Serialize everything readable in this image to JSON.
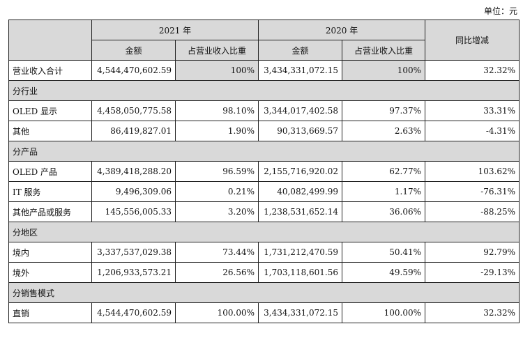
{
  "unit_label": "单位：元",
  "header": {
    "year_2021": "2021 年",
    "year_2020": "2020 年",
    "amount": "金额",
    "ratio": "占营业收入比重",
    "yoy": "同比增减"
  },
  "rows": [
    {
      "label": "营业收入合计",
      "a21": "4,544,470,602.59",
      "r21": "100%",
      "a20": "3,434,331,072.15",
      "r20": "100%",
      "yoy": "32.32%"
    },
    {
      "label": "OLED 显示",
      "a21": "4,458,050,775.58",
      "r21": "98.10%",
      "a20": "3,344,017,402.58",
      "r20": "97.37%",
      "yoy": "33.31%"
    },
    {
      "label": "其他",
      "a21": "86,419,827.01",
      "r21": "1.90%",
      "a20": "90,313,669.57",
      "r20": "2.63%",
      "yoy": "-4.31%"
    },
    {
      "label": "OLED 产品",
      "a21": "4,389,418,288.20",
      "r21": "96.59%",
      "a20": "2,155,716,920.02",
      "r20": "62.77%",
      "yoy": "103.62%"
    },
    {
      "label": "IT 服务",
      "a21": "9,496,309.06",
      "r21": "0.21%",
      "a20": "40,082,499.99",
      "r20": "1.17%",
      "yoy": "-76.31%"
    },
    {
      "label": "其他产品或服务",
      "a21": "145,556,005.33",
      "r21": "3.20%",
      "a20": "1,238,531,652.14",
      "r20": "36.06%",
      "yoy": "-88.25%"
    },
    {
      "label": "境内",
      "a21": "3,337,537,029.38",
      "r21": "73.44%",
      "a20": "1,731,212,470.59",
      "r20": "50.41%",
      "yoy": "92.79%"
    },
    {
      "label": "境外",
      "a21": "1,206,933,573.21",
      "r21": "26.56%",
      "a20": "1,703,118,601.56",
      "r20": "49.59%",
      "yoy": "-29.13%"
    },
    {
      "label": "直销",
      "a21": "4,544,470,602.59",
      "r21": "100.00%",
      "a20": "3,434,331,072.15",
      "r20": "100.00%",
      "yoy": "32.32%"
    }
  ],
  "sections": {
    "industry": "分行业",
    "product": "分产品",
    "region": "分地区",
    "sales_mode": "分销售模式"
  }
}
